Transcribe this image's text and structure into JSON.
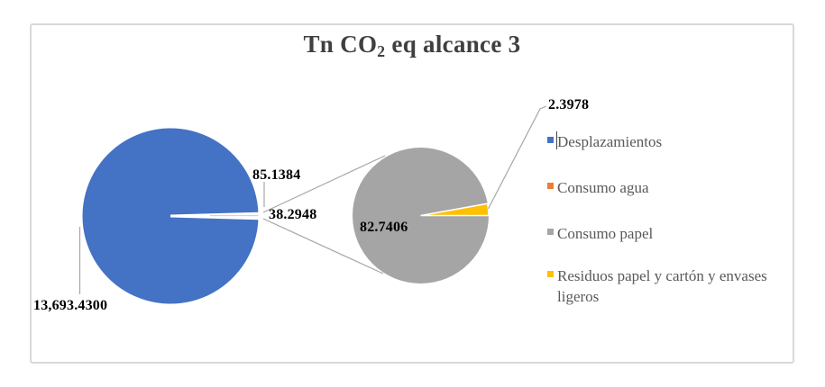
{
  "title": {
    "prefix": "Tn CO",
    "sub": "2",
    "suffix": " eq alcance 3",
    "full": "Tn CO2 eq alcance 3"
  },
  "chart_data": {
    "type": "pie",
    "subtype": "pie-of-pie",
    "title": "Tn CO2 eq alcance 3",
    "categories": [
      "Desplazamientos",
      "Consumo agua",
      "Consumo papel",
      "Residuos papel y cartón y envases ligeros"
    ],
    "values": [
      13693.43,
      38.2948,
      82.7406,
      2.3978
    ],
    "value_labels": [
      "13,693.4300",
      "38.2948",
      "82.7406",
      "2.3978"
    ],
    "colors": [
      "#4472C4",
      "#ED7D31",
      "#A5A5A5",
      "#FFC000"
    ],
    "secondary_plot": {
      "categories": [
        "Consumo papel",
        "Residuos papel y cartón y envases ligeros"
      ],
      "values": [
        82.7406,
        2.3978
      ],
      "group_total": 85.1384,
      "group_label": "85.1384"
    },
    "legend_position": "right",
    "grid": false
  },
  "labels": {
    "desplazamientos": "13,693.4300",
    "grupo": "85.1384",
    "consumo_agua": "38.2948",
    "consumo_papel": "82.7406",
    "residuos": "2.3978"
  },
  "legend": {
    "items": [
      {
        "label": "Desplazamientos",
        "color": "#4472C4"
      },
      {
        "label": "Consumo agua",
        "color": "#ED7D31"
      },
      {
        "label": "Consumo papel",
        "color": "#A5A5A5"
      },
      {
        "label": "Residuos papel y cartón y envases ligeros",
        "color": "#FFC000"
      }
    ]
  },
  "style": {
    "border_color": "#D9D9D9",
    "leader_color": "#A6A6A6",
    "title_color": "#404040",
    "legend_text_color": "#595959",
    "label_text_color": "#000000"
  }
}
